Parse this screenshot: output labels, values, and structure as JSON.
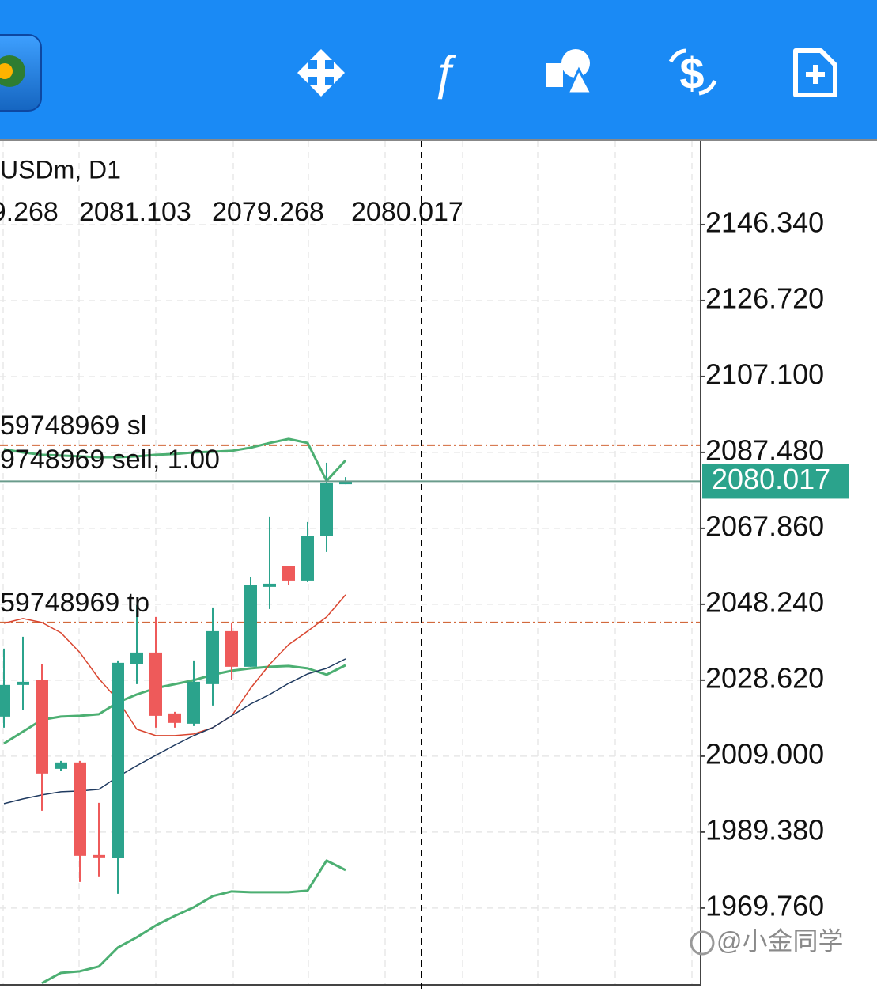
{
  "chart_data": {
    "type": "candlestick",
    "title": "USDm, D1",
    "ylim": [
      1949.9,
      2168.0
    ],
    "yticks": [
      {
        "value": 2146.34,
        "label": "2146.340"
      },
      {
        "value": 2126.72,
        "label": "2126.720"
      },
      {
        "value": 2107.1,
        "label": "2107.100"
      },
      {
        "value": 2087.48,
        "label": "2087.480"
      },
      {
        "value": 2067.86,
        "label": "2067.860"
      },
      {
        "value": 2048.24,
        "label": "2048.240"
      },
      {
        "value": 2028.62,
        "label": "2028.620"
      },
      {
        "value": 2009,
        "label": "2009.000"
      },
      {
        "value": 1989.38,
        "label": "1989.380"
      },
      {
        "value": 1969.76,
        "label": "1969.760"
      }
    ],
    "grid": true,
    "up_color": "#2ba38c",
    "down_color": "#ee5a5a",
    "open": [
      2019.22,
      2027.4,
      2028.62,
      2005.73,
      2007.37,
      1983.45,
      1982.64,
      2032.71,
      2035.77,
      2020.04,
      2017.38,
      2027.6,
      2041.29,
      2032.1,
      2052.74,
      2058.05,
      2054.37,
      2065.82,
      2079.268
    ],
    "high": [
      2036.8,
      2039.86,
      2032.71,
      2007.77,
      2007.77,
      1996.94,
      2033.73,
      2048.04,
      2044.97,
      2020.45,
      2033.73,
      2047.42,
      2043.54,
      2055.19,
      2070.93,
      2058.05,
      2069.5,
      2084.82,
      2081.103
    ],
    "low": [
      2016.36,
      2020.86,
      1994.9,
      2005.12,
      1976.51,
      1977.94,
      1973.44,
      2027.6,
      2016.36,
      2016.36,
      2016.77,
      2022.08,
      2028.62,
      2032.1,
      2047.01,
      2053.15,
      2053.96,
      2061.73,
      2079.268
    ],
    "close": [
      2027.4,
      2028.21,
      2004.51,
      2007.37,
      1983.25,
      1982.84,
      2033.12,
      2035.77,
      2019.42,
      2017.59,
      2028.21,
      2041.29,
      2032.1,
      2053.15,
      2053.55,
      2054.37,
      2065.82,
      2079.71,
      2080.017
    ],
    "indicators": [
      {
        "color": "#4caf72",
        "width": 3,
        "values": [
          2088.3,
          2087.48,
          2086.87,
          2086.66,
          2086.46,
          2086.25,
          2086.25,
          2086.46,
          2086.87,
          2087.07,
          2087.48,
          2087.68,
          2087.89,
          2088.71,
          2089.93,
          2090.96,
          2089.93,
          2080.12,
          2085.44
        ]
      },
      {
        "color": "#4caf72",
        "width": 3,
        "values": [
          2012.27,
          2015.34,
          2018.4,
          2019.22,
          2019.42,
          2019.83,
          2022.9,
          2024.94,
          2026.58,
          2027.6,
          2028.62,
          2030.05,
          2031.07,
          2031.69,
          2032.1,
          2032.3,
          2031.69,
          2030.05,
          2032.5
        ]
      },
      {
        "color": "#4caf72",
        "width": 3,
        "values": [
          null,
          null,
          1950.34,
          1953.0,
          1953.41,
          1954.64,
          1959.54,
          1962.2,
          1965.26,
          1967.72,
          1969.96,
          1972.83,
          1974.05,
          1973.85,
          1973.85,
          1973.85,
          1974.26,
          1982.02,
          1979.57
        ]
      },
      {
        "color": "#d9452f",
        "width": 1.5,
        "values": [
          2043.34,
          2044.56,
          2043.54,
          2040.88,
          2035.77,
          2029.03,
          2023.51,
          2015.95,
          2014.31,
          2014.31,
          2014.72,
          2016.36,
          2019.42,
          2026.58,
          2032.71,
          2037.82,
          2041.29,
          2044.97,
          2050.69
        ]
      },
      {
        "color": "#1f3a60",
        "width": 1.5,
        "values": [
          1996.74,
          1997.96,
          1998.99,
          1999.8,
          2000.01,
          2000.42,
          2003.69,
          2006.55,
          2009.21,
          2011.86,
          2014.31,
          2016.36,
          2019.42,
          2022.49,
          2024.94,
          2027.8,
          2030.26,
          2031.69,
          2034.14
        ]
      }
    ],
    "sl": 2089.32,
    "tp": 2043.54,
    "order_labels": [
      "59748969 sl",
      "9748969 sell, 1.00",
      "59748969 tp"
    ],
    "watermark": "@小金同学"
  }
}
